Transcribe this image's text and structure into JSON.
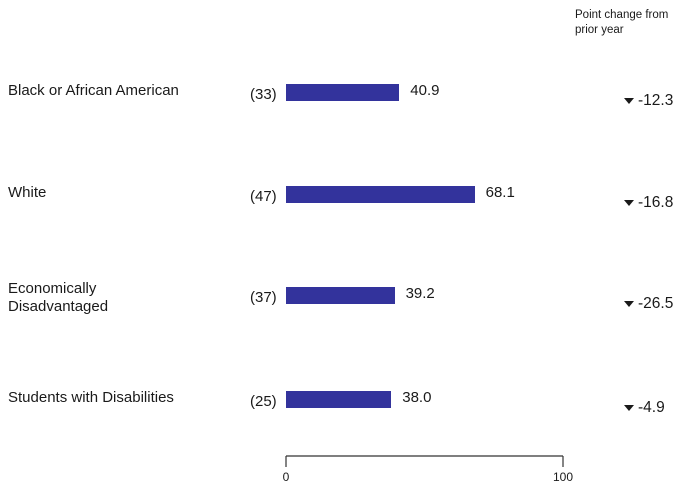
{
  "header": {
    "change_label": "Point change from\nprior year"
  },
  "chart_data": {
    "type": "bar",
    "orientation": "horizontal",
    "categories": [
      "Black or African American",
      "White",
      "Economically\nDisadvantaged",
      "Students with Disabilities"
    ],
    "counts": [
      "(33)",
      "(47)",
      "(37)",
      "(25)"
    ],
    "values": [
      40.9,
      68.1,
      39.2,
      38.0
    ],
    "value_labels": [
      "40.9",
      "68.1",
      "39.2",
      "38.0"
    ],
    "point_change": [
      "-12.3",
      "-16.8",
      "-26.5",
      "-4.9"
    ],
    "change_direction": "down",
    "xlim": [
      0,
      100
    ],
    "x_ticks": [
      "0",
      "100"
    ],
    "bar_color": "#33339c"
  }
}
